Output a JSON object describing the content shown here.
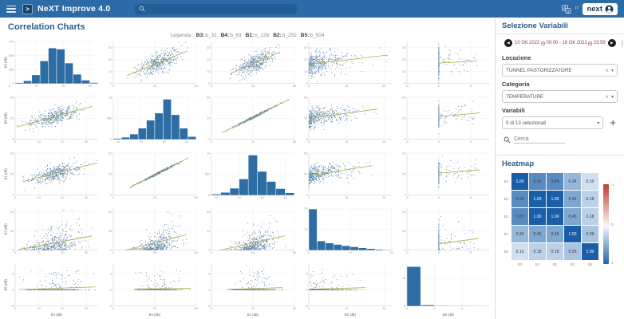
{
  "topbar": {
    "title": "NeXT Improve 4.0",
    "search_placeholder": "",
    "lang": "IT",
    "account_label": "next"
  },
  "page": {
    "title": "Correlation Charts"
  },
  "legend": {
    "prefix": "Legenda:",
    "items": [
      {
        "key": "B3",
        "value": "b_31"
      },
      {
        "key": "B4",
        "value": "b_63"
      },
      {
        "key": "B1",
        "value": "b_126"
      },
      {
        "key": "B2",
        "value": "b_252"
      },
      {
        "key": "B5",
        "value": "b_504"
      }
    ]
  },
  "sidebar": {
    "title": "Selezione Variabili",
    "daterange": {
      "from": "10 Ott 2022",
      "from_time": "00:00",
      "sep": "-",
      "to": "16 Ott 2022",
      "to_time": "23:59"
    },
    "fields": [
      {
        "label": "Locazione",
        "value": "TUNNEL PASTORIZZATORE"
      },
      {
        "label": "Categoria",
        "value": "TEMPERATURE"
      }
    ],
    "variables": {
      "label": "Variabili",
      "value": "5 di 13 selezionati"
    },
    "search_placeholder": "Cerca",
    "heatmap_title": "Heatmap"
  },
  "chart_data": {
    "type": "scatter-matrix",
    "point_color": "#31618f",
    "bar_color": "#2e6da4",
    "trendline_color": "#a6a83e",
    "points_per_cell": 400,
    "variables": [
      {
        "name": "B3",
        "axis_label": "B3 (dB)",
        "range": [
          0,
          35
        ],
        "ticks": [
          0,
          10,
          20,
          30
        ],
        "dist": "normal",
        "mean": 17,
        "sd": 5.2,
        "hist": {
          "ymax": 750,
          "yticks": [
            0,
            250,
            500,
            750
          ],
          "xrange": [
            2,
            33
          ],
          "bars": [
            10,
            45,
            150,
            400,
            630,
            610,
            360,
            160,
            55,
            12
          ]
        }
      },
      {
        "name": "B4",
        "axis_label": "B4 (dB)",
        "range": [
          0,
          50
        ],
        "ticks": [
          0,
          25,
          50
        ],
        "dist": "normal",
        "mean": 27,
        "sd": 6,
        "hist": {
          "ymax": 1000,
          "yticks": [
            0,
            500,
            1000
          ],
          "xrange": [
            8,
            44
          ],
          "xticks": [
            10,
            20,
            30,
            40
          ],
          "bars": [
            15,
            45,
            120,
            260,
            450,
            620,
            950,
            580,
            260,
            60
          ]
        }
      },
      {
        "name": "B1",
        "axis_label": "B1 (dB)",
        "range": [
          0,
          50
        ],
        "ticks": [
          0,
          25,
          50
        ],
        "dist": "normal",
        "mean": 26,
        "sd": 6,
        "hist": {
          "ymax": 1000,
          "yticks": [
            0,
            500,
            1000
          ],
          "xrange": [
            8,
            44
          ],
          "xticks": [
            10,
            20,
            30,
            40
          ],
          "bars": [
            20,
            60,
            160,
            380,
            950,
            560,
            320,
            150,
            50
          ]
        }
      },
      {
        "name": "B2",
        "axis_label": "B2 (dB)",
        "range": [
          0,
          22
        ],
        "ticks": [
          0,
          10,
          20
        ],
        "dist": "exponential",
        "scale": 3.6,
        "hist": {
          "ymax": 2000,
          "yticks": [
            0,
            1000,
            2000
          ],
          "ytick_labels": [
            "0",
            "1k",
            "2k"
          ],
          "xrange": [
            0,
            20
          ],
          "xticks": [
            0,
            10,
            20
          ],
          "bars": [
            1950,
            430,
            330,
            260,
            200,
            150,
            100,
            60,
            25,
            8
          ]
        }
      },
      {
        "name": "B5",
        "axis_label": "B5 (dB)",
        "range": [
          -5,
          8
        ],
        "ticks": [
          -5,
          0,
          5
        ],
        "dist": "spike",
        "p_zero": 0.87,
        "max": 6.5,
        "hist": {
          "ymax": 3000,
          "yticks": [
            0,
            2000
          ],
          "ytick_labels": [
            "0",
            "2k"
          ],
          "xrange": [
            0,
            6
          ],
          "xticks": [
            0,
            2,
            4
          ],
          "bars": [
            2800,
            60,
            14,
            6,
            3,
            2
          ]
        }
      }
    ],
    "correlation": {
      "labels": [
        "B3",
        "B4",
        "B1",
        "B2",
        "B5"
      ],
      "matrix": [
        [
          1.0,
          0.65,
          0.65,
          0.34,
          0.1
        ],
        [
          0.65,
          1.0,
          1.0,
          0.45,
          0.18
        ],
        [
          0.65,
          1.0,
          1.0,
          0.45,
          0.18
        ],
        [
          0.34,
          0.45,
          0.45,
          1.0,
          0.26
        ],
        [
          0.1,
          0.18,
          0.18,
          0.26,
          1.0
        ]
      ]
    },
    "heatmap": {
      "labels": [
        "B3",
        "B4",
        "B1",
        "B2",
        "B5"
      ],
      "colorbar": {
        "labels": [
          "-1",
          "0",
          "1"
        ],
        "top_color": "#bf3a30",
        "mid_color": "#f7f7f7",
        "bottom_color": "#2166ac"
      }
    }
  }
}
